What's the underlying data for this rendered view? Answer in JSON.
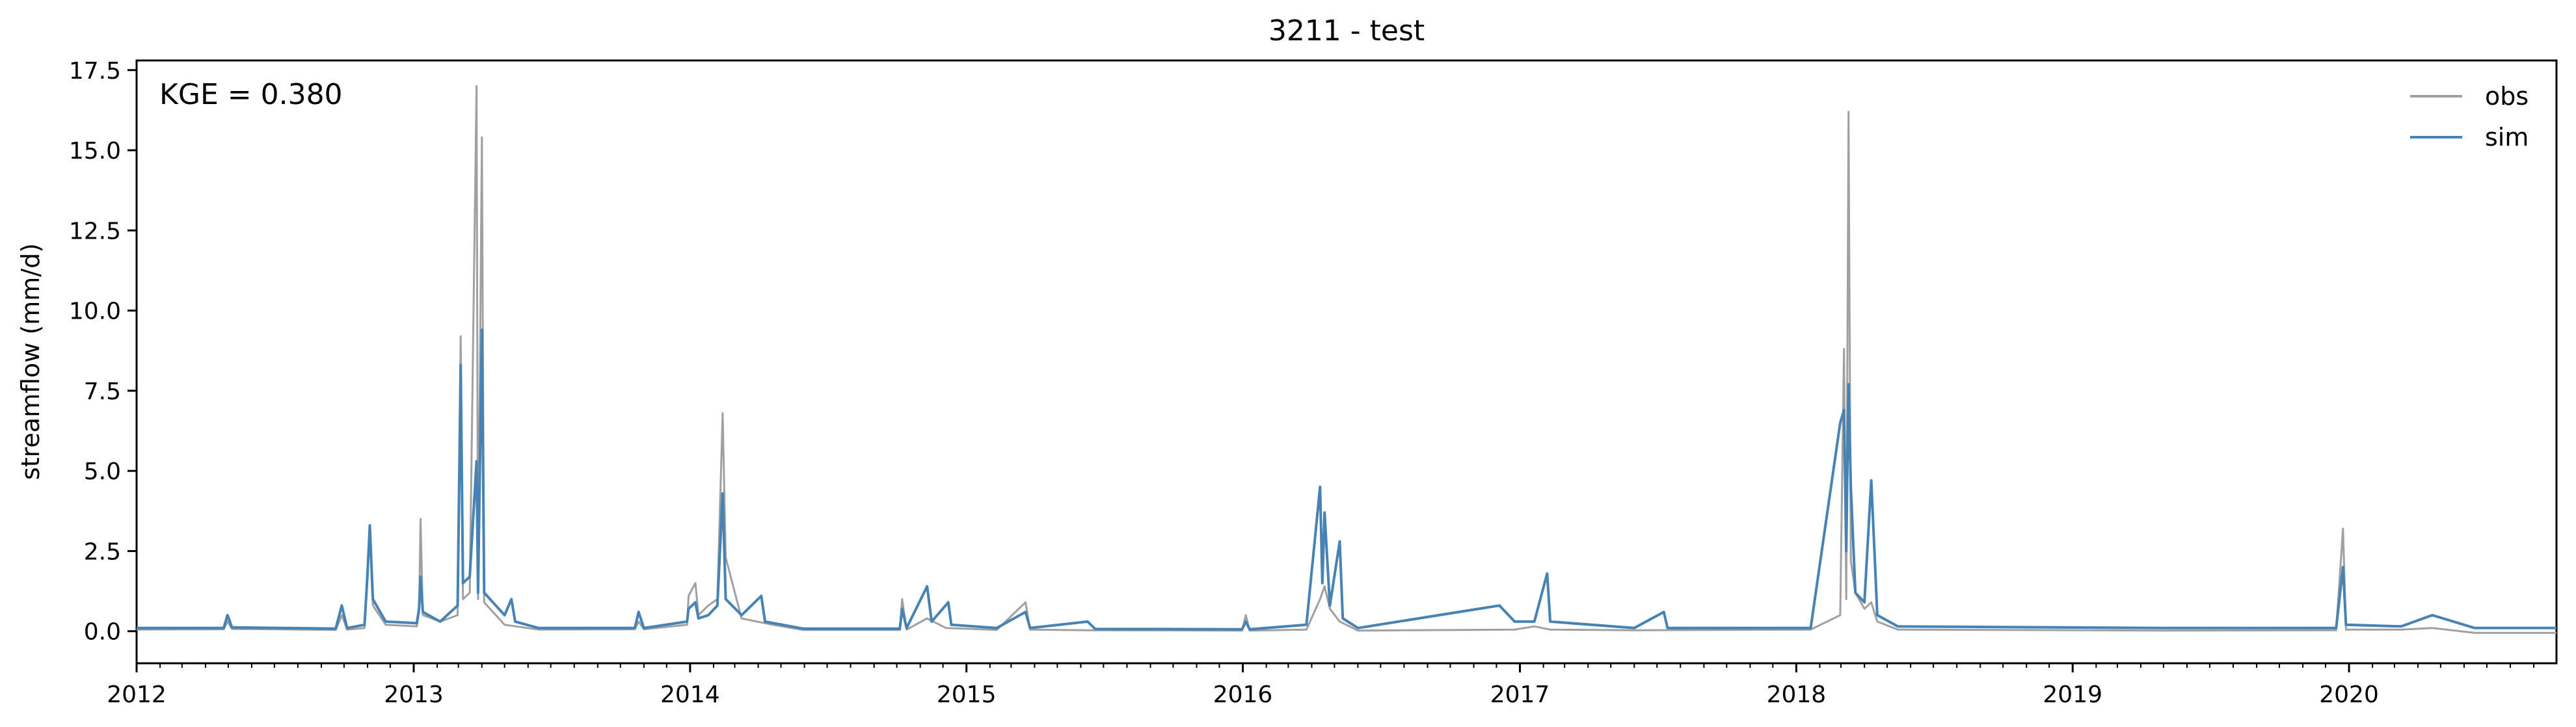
{
  "chart_data": {
    "type": "line",
    "title": "3211 - test",
    "xlabel": "",
    "ylabel": "streamflow (mm/d)",
    "annotation": "KGE = 0.380",
    "xlim": [
      "2012-01-01",
      "2020-10-01"
    ],
    "ylim": [
      -1.0,
      17.8
    ],
    "x_ticks": [
      "2012",
      "2013",
      "2014",
      "2015",
      "2016",
      "2017",
      "2018",
      "2019",
      "2020"
    ],
    "y_ticks": [
      0.0,
      2.5,
      5.0,
      7.5,
      10.0,
      12.5,
      15.0,
      17.5
    ],
    "y_tick_labels": [
      "0.0",
      "2.5",
      "5.0",
      "7.5",
      "10.0",
      "12.5",
      "15.0",
      "17.5"
    ],
    "grid": false,
    "legend_position": "top-right",
    "series": [
      {
        "name": "obs",
        "color": "#a0a0a0",
        "points": [
          [
            "2012-01-01",
            0.05
          ],
          [
            "2012-04-25",
            0.06
          ],
          [
            "2012-04-30",
            0.3
          ],
          [
            "2012-05-06",
            0.07
          ],
          [
            "2012-09-20",
            0.04
          ],
          [
            "2012-09-28",
            0.5
          ],
          [
            "2012-10-05",
            0.05
          ],
          [
            "2012-10-28",
            0.1
          ],
          [
            "2012-11-01",
            2.0
          ],
          [
            "2012-11-04",
            3.1
          ],
          [
            "2012-11-08",
            0.8
          ],
          [
            "2012-11-25",
            0.2
          ],
          [
            "2013-01-05",
            0.15
          ],
          [
            "2013-01-08",
            0.6
          ],
          [
            "2013-01-10",
            3.5
          ],
          [
            "2013-01-13",
            0.5
          ],
          [
            "2013-02-05",
            0.3
          ],
          [
            "2013-02-28",
            0.5
          ],
          [
            "2013-03-04",
            9.2
          ],
          [
            "2013-03-07",
            1.0
          ],
          [
            "2013-03-16",
            1.2
          ],
          [
            "2013-03-25",
            17.0
          ],
          [
            "2013-03-27",
            1.0
          ],
          [
            "2013-04-01",
            15.4
          ],
          [
            "2013-04-04",
            0.9
          ],
          [
            "2013-05-01",
            0.2
          ],
          [
            "2013-06-15",
            0.05
          ],
          [
            "2013-10-20",
            0.06
          ],
          [
            "2013-10-25",
            0.3
          ],
          [
            "2013-11-01",
            0.06
          ],
          [
            "2013-12-28",
            0.2
          ],
          [
            "2013-12-30",
            1.1
          ],
          [
            "2014-01-08",
            1.5
          ],
          [
            "2014-01-12",
            0.5
          ],
          [
            "2014-01-25",
            0.8
          ],
          [
            "2014-02-06",
            1.0
          ],
          [
            "2014-02-13",
            6.8
          ],
          [
            "2014-02-17",
            2.3
          ],
          [
            "2014-03-10",
            0.4
          ],
          [
            "2014-04-20",
            0.2
          ],
          [
            "2014-05-30",
            0.04
          ],
          [
            "2014-10-05",
            0.04
          ],
          [
            "2014-10-08",
            1.0
          ],
          [
            "2014-10-14",
            0.05
          ],
          [
            "2014-11-10",
            0.4
          ],
          [
            "2014-12-05",
            0.1
          ],
          [
            "2015-02-10",
            0.04
          ],
          [
            "2015-03-20",
            0.9
          ],
          [
            "2015-03-26",
            0.05
          ],
          [
            "2015-06-10",
            0.03
          ],
          [
            "2015-12-31",
            0.02
          ],
          [
            "2016-01-05",
            0.5
          ],
          [
            "2016-01-10",
            0.02
          ],
          [
            "2016-03-25",
            0.05
          ],
          [
            "2016-04-12",
            1.0
          ],
          [
            "2016-04-18",
            1.4
          ],
          [
            "2016-04-25",
            0.7
          ],
          [
            "2016-05-08",
            0.3
          ],
          [
            "2016-06-01",
            0.02
          ],
          [
            "2016-12-25",
            0.05
          ],
          [
            "2017-01-20",
            0.15
          ],
          [
            "2017-02-10",
            0.05
          ],
          [
            "2017-06-01",
            0.03
          ],
          [
            "2018-01-20",
            0.05
          ],
          [
            "2018-02-28",
            0.5
          ],
          [
            "2018-03-05",
            8.8
          ],
          [
            "2018-03-08",
            1.0
          ],
          [
            "2018-03-11",
            16.2
          ],
          [
            "2018-03-14",
            2.2
          ],
          [
            "2018-03-20",
            1.2
          ],
          [
            "2018-04-01",
            0.7
          ],
          [
            "2018-04-10",
            0.9
          ],
          [
            "2018-04-18",
            0.3
          ],
          [
            "2018-05-15",
            0.05
          ],
          [
            "2019-05-01",
            0.02
          ],
          [
            "2019-12-15",
            0.03
          ],
          [
            "2019-12-24",
            3.2
          ],
          [
            "2019-12-28",
            0.05
          ],
          [
            "2020-03-10",
            0.05
          ],
          [
            "2020-04-20",
            0.1
          ],
          [
            "2020-06-15",
            -0.05
          ],
          [
            "2020-10-01",
            -0.05
          ]
        ]
      },
      {
        "name": "sim",
        "color": "#4682b4",
        "points": [
          [
            "2012-01-01",
            0.1
          ],
          [
            "2012-04-25",
            0.1
          ],
          [
            "2012-04-30",
            0.5
          ],
          [
            "2012-05-06",
            0.12
          ],
          [
            "2012-09-20",
            0.08
          ],
          [
            "2012-09-28",
            0.8
          ],
          [
            "2012-10-05",
            0.1
          ],
          [
            "2012-10-28",
            0.2
          ],
          [
            "2012-11-01",
            1.8
          ],
          [
            "2012-11-04",
            3.3
          ],
          [
            "2012-11-08",
            1.0
          ],
          [
            "2012-11-25",
            0.3
          ],
          [
            "2013-01-05",
            0.25
          ],
          [
            "2013-01-08",
            0.7
          ],
          [
            "2013-01-10",
            1.7
          ],
          [
            "2013-01-13",
            0.6
          ],
          [
            "2013-02-05",
            0.3
          ],
          [
            "2013-02-28",
            0.8
          ],
          [
            "2013-03-04",
            8.3
          ],
          [
            "2013-03-07",
            1.5
          ],
          [
            "2013-03-16",
            1.7
          ],
          [
            "2013-03-25",
            5.3
          ],
          [
            "2013-03-27",
            1.2
          ],
          [
            "2013-04-01",
            9.4
          ],
          [
            "2013-04-04",
            1.2
          ],
          [
            "2013-05-01",
            0.5
          ],
          [
            "2013-05-10",
            1.0
          ],
          [
            "2013-05-15",
            0.3
          ],
          [
            "2013-06-15",
            0.1
          ],
          [
            "2013-10-20",
            0.1
          ],
          [
            "2013-10-25",
            0.6
          ],
          [
            "2013-11-01",
            0.1
          ],
          [
            "2013-12-28",
            0.3
          ],
          [
            "2013-12-30",
            0.7
          ],
          [
            "2014-01-08",
            0.9
          ],
          [
            "2014-01-12",
            0.4
          ],
          [
            "2014-01-25",
            0.5
          ],
          [
            "2014-02-06",
            0.8
          ],
          [
            "2014-02-13",
            4.3
          ],
          [
            "2014-02-17",
            1.0
          ],
          [
            "2014-03-10",
            0.5
          ],
          [
            "2014-04-05",
            1.1
          ],
          [
            "2014-04-10",
            0.3
          ],
          [
            "2014-05-30",
            0.08
          ],
          [
            "2014-10-05",
            0.08
          ],
          [
            "2014-10-08",
            0.7
          ],
          [
            "2014-10-14",
            0.1
          ],
          [
            "2014-11-10",
            1.4
          ],
          [
            "2014-11-16",
            0.3
          ],
          [
            "2014-12-08",
            0.9
          ],
          [
            "2014-12-12",
            0.2
          ],
          [
            "2015-02-10",
            0.1
          ],
          [
            "2015-03-20",
            0.6
          ],
          [
            "2015-03-26",
            0.1
          ],
          [
            "2015-06-10",
            0.3
          ],
          [
            "2015-06-20",
            0.07
          ],
          [
            "2015-12-31",
            0.06
          ],
          [
            "2016-01-05",
            0.3
          ],
          [
            "2016-01-10",
            0.06
          ],
          [
            "2016-03-25",
            0.2
          ],
          [
            "2016-04-12",
            4.5
          ],
          [
            "2016-04-15",
            1.5
          ],
          [
            "2016-04-18",
            3.7
          ],
          [
            "2016-04-25",
            0.8
          ],
          [
            "2016-05-08",
            2.8
          ],
          [
            "2016-05-12",
            0.4
          ],
          [
            "2016-06-01",
            0.1
          ],
          [
            "2016-12-05",
            0.8
          ],
          [
            "2016-12-25",
            0.3
          ],
          [
            "2017-01-20",
            0.3
          ],
          [
            "2017-02-06",
            1.8
          ],
          [
            "2017-02-10",
            0.3
          ],
          [
            "2017-06-01",
            0.1
          ],
          [
            "2017-07-10",
            0.6
          ],
          [
            "2017-07-15",
            0.1
          ],
          [
            "2018-01-20",
            0.1
          ],
          [
            "2018-02-28",
            6.5
          ],
          [
            "2018-03-05",
            6.9
          ],
          [
            "2018-03-08",
            2.5
          ],
          [
            "2018-03-11",
            7.7
          ],
          [
            "2018-03-14",
            4.5
          ],
          [
            "2018-03-20",
            1.2
          ],
          [
            "2018-04-01",
            0.9
          ],
          [
            "2018-04-10",
            4.7
          ],
          [
            "2018-04-14",
            2.6
          ],
          [
            "2018-04-18",
            0.5
          ],
          [
            "2018-05-15",
            0.15
          ],
          [
            "2019-05-01",
            0.1
          ],
          [
            "2019-12-15",
            0.1
          ],
          [
            "2019-12-24",
            2.0
          ],
          [
            "2019-12-28",
            0.2
          ],
          [
            "2020-03-10",
            0.15
          ],
          [
            "2020-04-20",
            0.5
          ],
          [
            "2020-06-15",
            0.1
          ],
          [
            "2020-10-01",
            0.1
          ]
        ]
      }
    ]
  }
}
